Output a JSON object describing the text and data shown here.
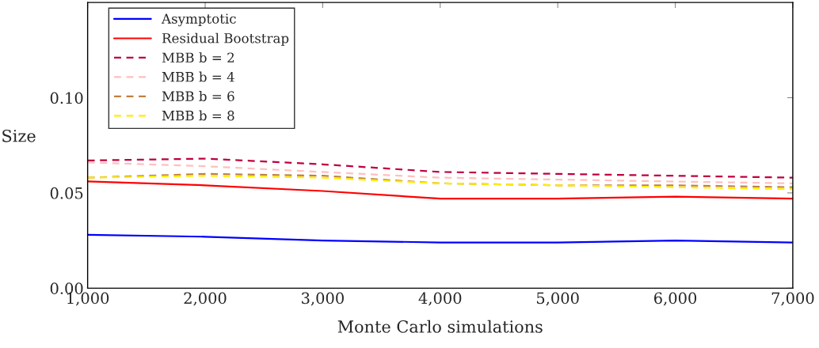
{
  "chart_data": {
    "type": "line",
    "xlabel": "Monte Carlo simulations",
    "ylabel": "Size",
    "x": [
      1000,
      2000,
      3000,
      4000,
      5000,
      6000,
      7000
    ],
    "xlim": [
      1000,
      7000
    ],
    "xticks": [
      {
        "value": 1000,
        "label": "1,000"
      },
      {
        "value": 2000,
        "label": "2,000"
      },
      {
        "value": 3000,
        "label": "3,000"
      },
      {
        "value": 4000,
        "label": "4,000"
      },
      {
        "value": 5000,
        "label": "5,000"
      },
      {
        "value": 6000,
        "label": "6,000"
      },
      {
        "value": 7000,
        "label": "7,000"
      }
    ],
    "ylim": [
      0,
      0.15
    ],
    "yticks": [
      {
        "value": 0,
        "label": "0.00"
      },
      {
        "value": 0.05,
        "label": "0.05"
      },
      {
        "value": 0.1,
        "label": "0.10"
      }
    ],
    "legend": "top left",
    "grid": false,
    "marker": "none",
    "series": [
      {
        "name": "Asymptotic",
        "color": "#0000ff",
        "line_style": "solid",
        "values": [
          0.028,
          0.027,
          0.025,
          0.024,
          0.024,
          0.025,
          0.024
        ]
      },
      {
        "name": "Residual Bootstrap",
        "color": "#ff0000",
        "line_style": "solid",
        "values": [
          0.056,
          0.054,
          0.051,
          0.047,
          0.047,
          0.048,
          0.047
        ]
      },
      {
        "name": "MBB b = 2",
        "color": "#bf0040",
        "line_style": "dashed",
        "values": [
          0.067,
          0.068,
          0.065,
          0.061,
          0.06,
          0.059,
          0.058
        ]
      },
      {
        "name": "MBB b = 4",
        "color": "#ffbfbf",
        "line_style": "dashed",
        "values": [
          0.066,
          0.064,
          0.061,
          0.058,
          0.057,
          0.056,
          0.055
        ]
      },
      {
        "name": "MBB b = 6",
        "color": "#bf8040",
        "line_style": "dashed",
        "values": [
          0.058,
          0.06,
          0.059,
          0.055,
          0.054,
          0.054,
          0.053
        ]
      },
      {
        "name": "MBB b = 8",
        "color": "#ffee00",
        "line_style": "dashed",
        "values": [
          0.058,
          0.059,
          0.058,
          0.055,
          0.054,
          0.053,
          0.052
        ]
      }
    ]
  }
}
